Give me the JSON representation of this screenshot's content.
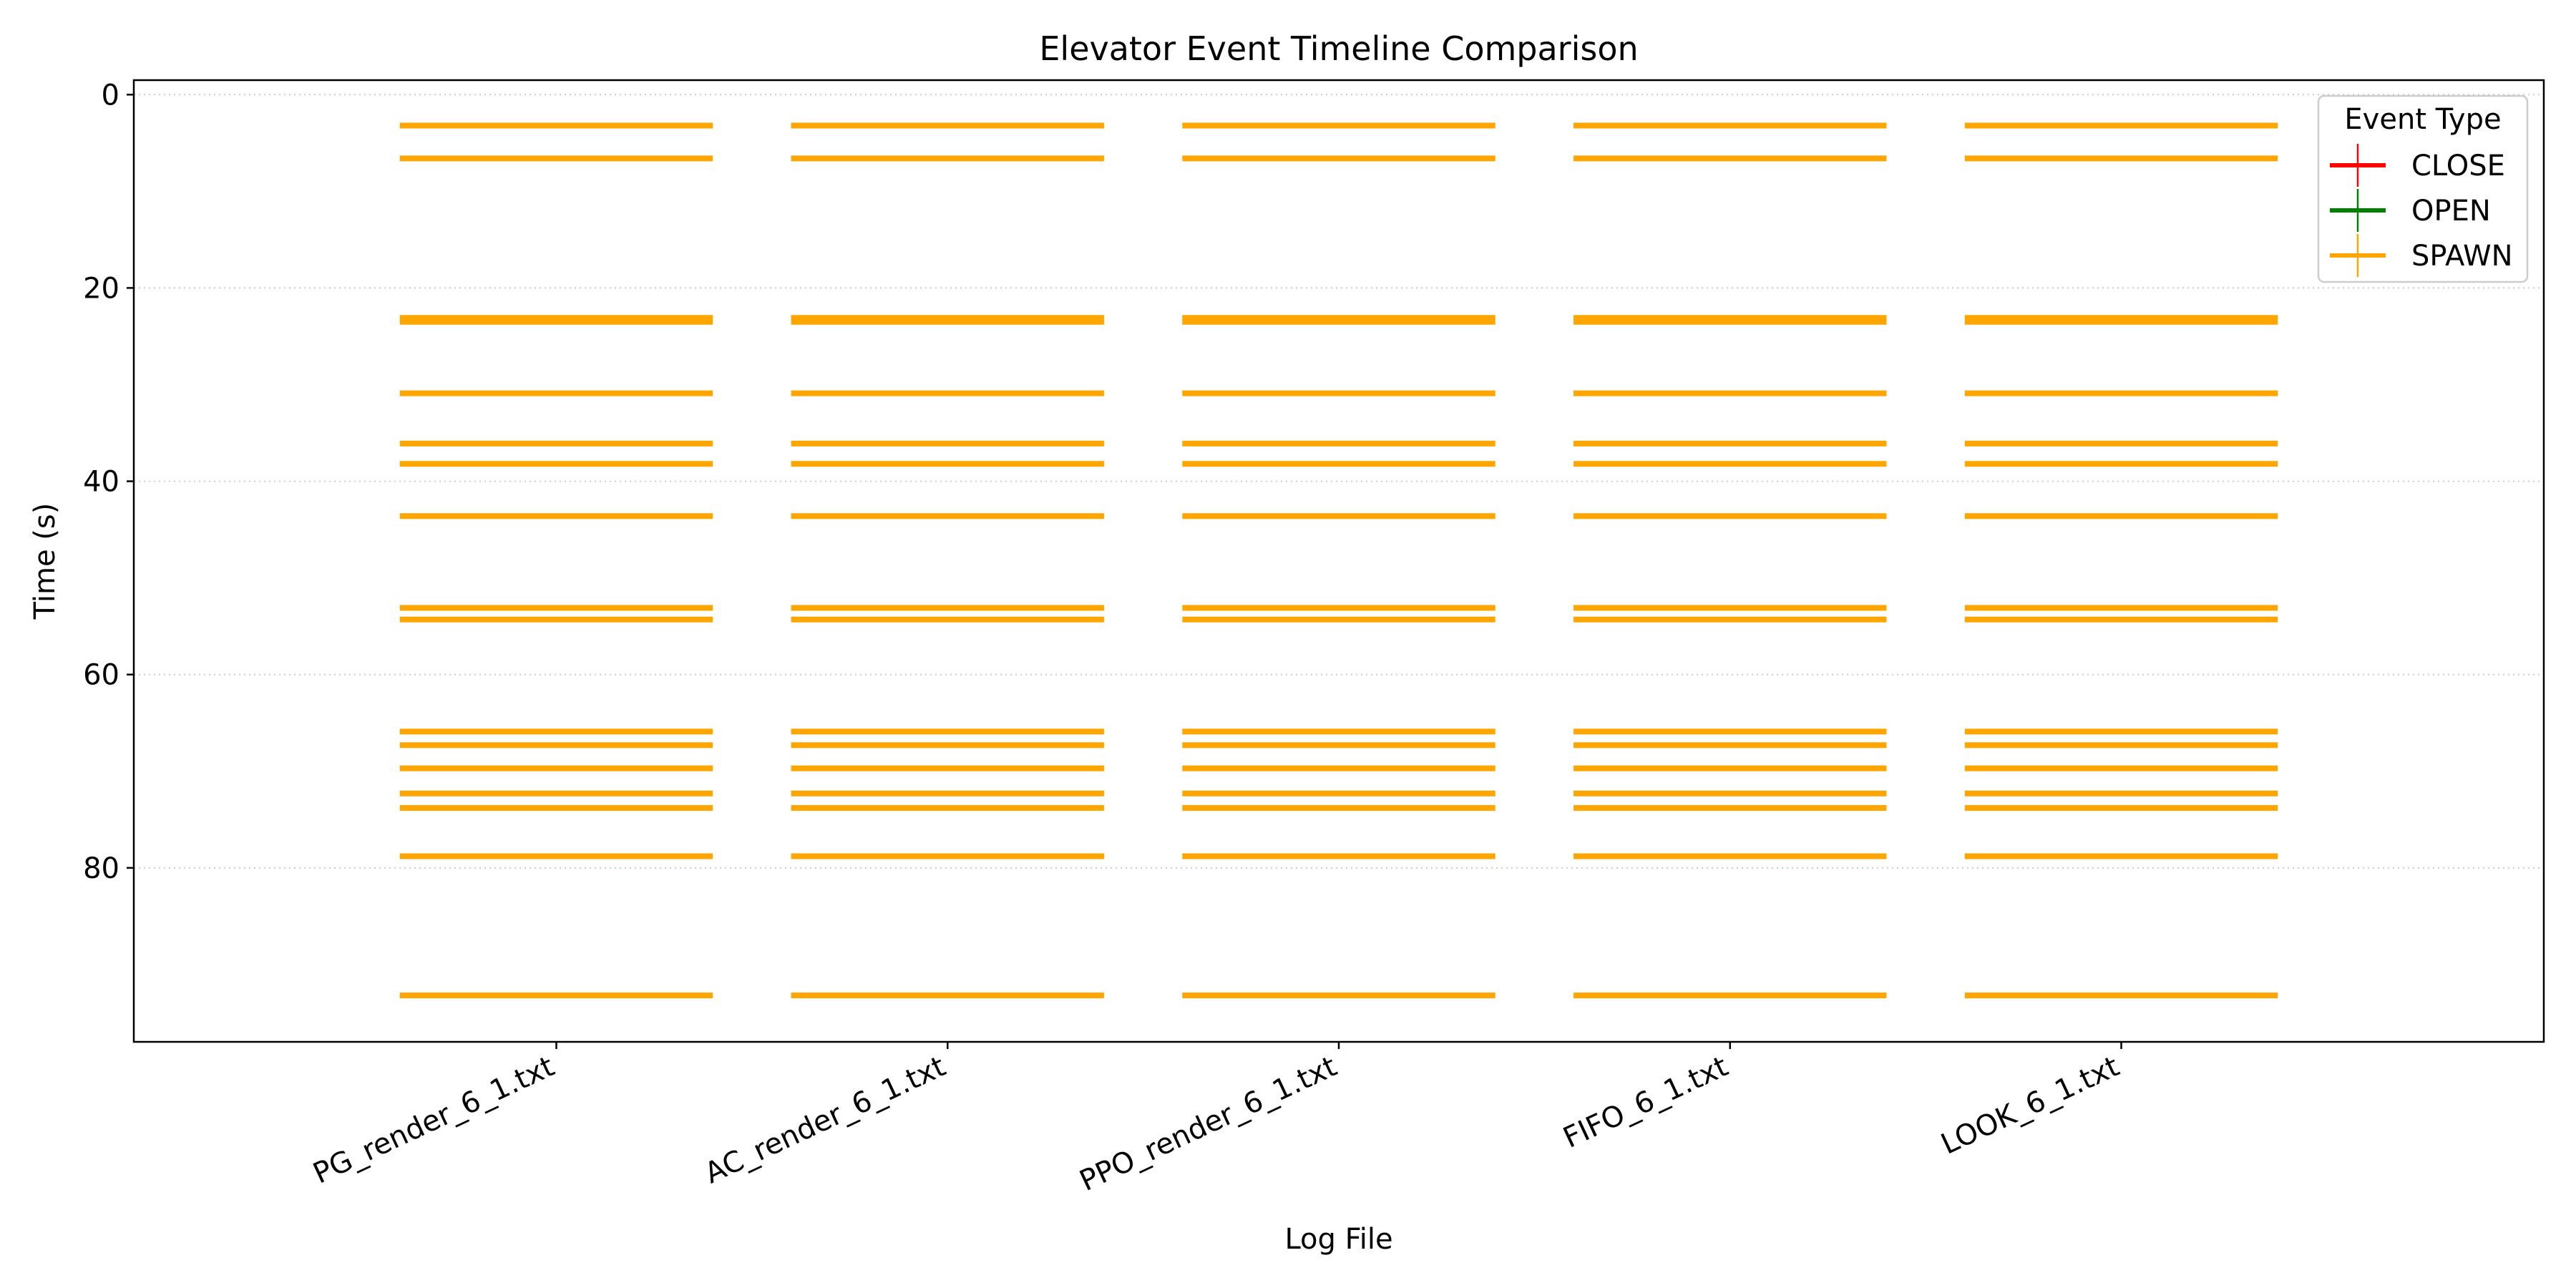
{
  "chart_data": {
    "type": "timeline",
    "title": "Elevator Event Timeline Comparison",
    "xlabel": "Log File",
    "ylabel": "Time (s)",
    "categories": [
      "PG_render_6_1.txt",
      "AC_render_6_1.txt",
      "PPO_render_6_1.txt",
      "FIFO_6_1.txt",
      "LOOK_6_1.txt"
    ],
    "ylim": [
      98,
      -1.5
    ],
    "y_inverted": true,
    "yticks": [
      0,
      20,
      40,
      60,
      80
    ],
    "grid": "horizontal dotted",
    "legend": {
      "title": "Event Type",
      "placement": "top-right",
      "entries": [
        {
          "label": "CLOSE",
          "color": "#ff0000"
        },
        {
          "label": "OPEN",
          "color": "#008000"
        },
        {
          "label": "SPAWN",
          "color": "#ffa500"
        }
      ]
    },
    "series": [
      {
        "name": "CLOSE",
        "color": "#ff0000",
        "times": []
      },
      {
        "name": "OPEN",
        "color": "#008000",
        "times": []
      },
      {
        "name": "SPAWN",
        "color": "#ffa500",
        "times": [
          3.2,
          6.6,
          23.1,
          23.5,
          30.9,
          36.1,
          38.2,
          43.6,
          53.1,
          54.3,
          65.9,
          67.3,
          69.7,
          72.3,
          73.8,
          78.8,
          93.2
        ]
      }
    ]
  }
}
